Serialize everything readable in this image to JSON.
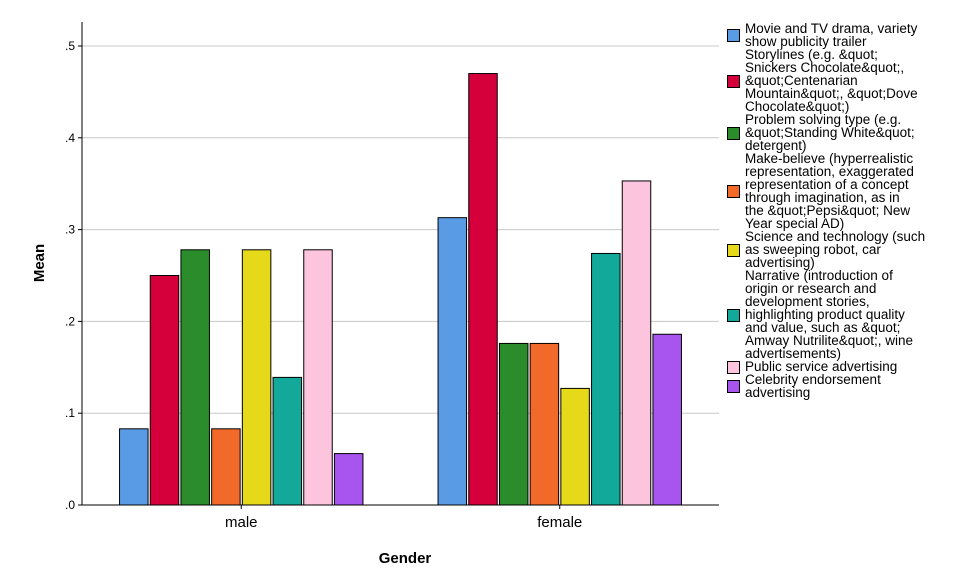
{
  "chart_data": {
    "type": "bar",
    "categories": [
      "male",
      "female"
    ],
    "xlabel": "Gender",
    "ylabel": "Mean",
    "ylim": [
      0,
      0.5
    ],
    "yticks": [
      ".0",
      ".1",
      ".2",
      ".3",
      ".4",
      ".5"
    ],
    "grid": true,
    "legend_position": "right",
    "series": [
      {
        "name": "Movie and TV drama, variety\nshow publicity trailer",
        "color": "#5a9be6",
        "values": [
          0.083,
          0.313
        ]
      },
      {
        "name": "Storylines (e.g. &quot;\nSnickers Chocolate&quot;,\n&quot;Centenarian\nMountain&quot;, &quot;Dove\nChocolate&quot;)",
        "color": "#d5003b",
        "values": [
          0.25,
          0.47
        ]
      },
      {
        "name": "Problem solving type (e.g.\n&quot;Standing White&quot;\ndetergent)",
        "color": "#2a8c2a",
        "values": [
          0.278,
          0.176
        ]
      },
      {
        "name": "Make-believe (hyperrealistic\nrepresentation, exaggerated\nrepresentation of a concept\nthrough imagination, as in\nthe &quot;Pepsi&quot; New\nYear special AD)",
        "color": "#f26a2a",
        "values": [
          0.083,
          0.176
        ]
      },
      {
        "name": "Science and technology (such\nas sweeping robot, car\nadvertising)",
        "color": "#e5d91a",
        "values": [
          0.278,
          0.127
        ]
      },
      {
        "name": "Narrative (introduction of\norigin or research and\ndevelopment stories,\nhighlighting product quality\nand value, such as &quot;\nAmway Nutrilite&quot;, wine\nadvertisements)",
        "color": "#12a99a",
        "values": [
          0.139,
          0.274
        ]
      },
      {
        "name": "Public service advertising",
        "color": "#fcc4dd",
        "values": [
          0.278,
          0.353
        ]
      },
      {
        "name": "Celebrity endorsement\nadvertising",
        "color": "#a855ef",
        "values": [
          0.056,
          0.186
        ]
      }
    ]
  }
}
